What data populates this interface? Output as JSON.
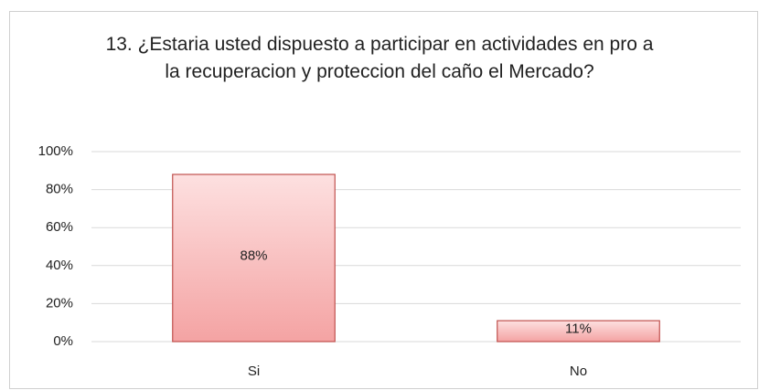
{
  "chart_data": {
    "type": "bar",
    "title": "13. ¿Estaria usted dispuesto a participar en actividades en pro a la recuperacion y proteccion del caño el Mercado?",
    "categories": [
      "Si",
      "No"
    ],
    "values": [
      88,
      11
    ],
    "value_labels": [
      "88%",
      "11%"
    ],
    "color": "#f4a3a3",
    "ylim": [
      0,
      100
    ],
    "yticks": [
      {
        "value": 0,
        "label": "0%"
      },
      {
        "value": 20,
        "label": "20%"
      },
      {
        "value": 40,
        "label": "40%"
      },
      {
        "value": 60,
        "label": "60%"
      },
      {
        "value": 80,
        "label": "80%"
      },
      {
        "value": 100,
        "label": "100%"
      }
    ],
    "grid": true
  }
}
